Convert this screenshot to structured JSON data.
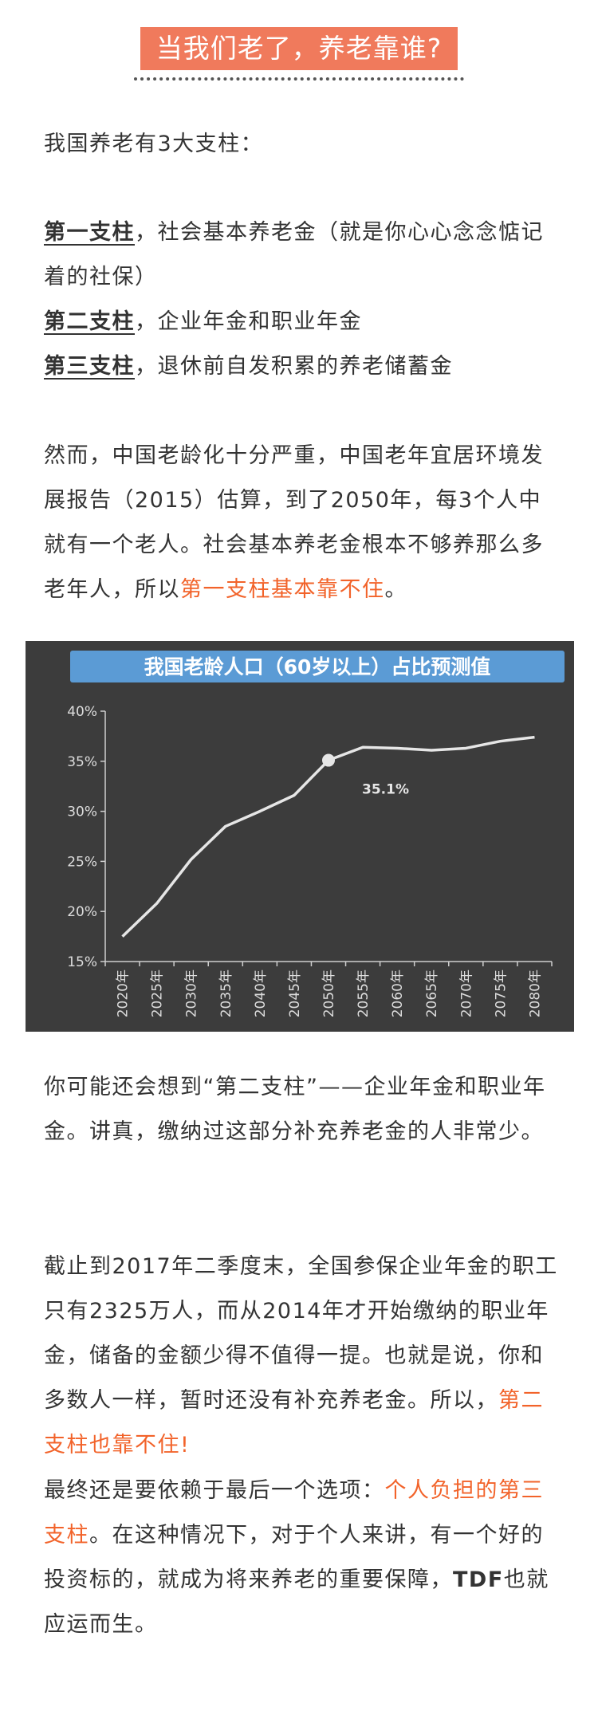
{
  "title": "当我们老了，养老靠谁?",
  "intro": "我国养老有3大支柱：",
  "pillars": [
    {
      "name": "第一支柱",
      "desc": "，社会基本养老金（就是你心心念念惦记着的社保）"
    },
    {
      "name": "第二支柱",
      "desc": "，企业年金和职业年金"
    },
    {
      "name": "第三支柱",
      "desc": "，退休前自发积累的养老储蓄金"
    }
  ],
  "para1": {
    "text": "然而，中国老龄化十分严重，中国老年宜居环境发展报告（2015）估算，到了2050年，每3个人中就有一个老人。社会基本养老金根本不够养那么多老年人，所以",
    "highlight": "第一支柱基本靠不住",
    "end": "。"
  },
  "chart_data": {
    "type": "line",
    "title": "我国老龄人口（60岁以上）占比预测值",
    "categories": [
      "2020年",
      "2025年",
      "2030年",
      "2035年",
      "2040年",
      "2045年",
      "2050年",
      "2055年",
      "2060年",
      "2065年",
      "2070年",
      "2075年",
      "2080年"
    ],
    "values": [
      17.5,
      20.8,
      25.2,
      28.5,
      30.0,
      31.6,
      35.1,
      36.4,
      36.3,
      36.1,
      36.3,
      37.0,
      37.4
    ],
    "yticks": [
      "15%",
      "20%",
      "25%",
      "30%",
      "35%",
      "40%"
    ],
    "ylim": [
      15,
      40
    ],
    "annotation": {
      "label": "35.1%",
      "category": "2050年",
      "value": 35.1
    },
    "colors": {
      "background": "#3c3c3c",
      "title_bar": "#5b9bd5",
      "line": "#e6e6e6",
      "text": "#ffffff"
    }
  },
  "para2": "你可能还会想到“第二支柱”——企业年金和职业年金。讲真，缴纳过这部分补充养老金的人非常少。",
  "para3": {
    "text": "截止到2017年二季度末，全国参保企业年金的职工只有2325万人，而从2014年才开始缴纳的职业年金，储备的金额少得不值得一提。也就是说，你和多数人一样，暂时还没有补充养老金。所以，",
    "highlight": "第二支柱也靠不住!"
  },
  "para4": {
    "text": "最终还是要依赖于最后一个选项：",
    "highlight": "个人负担的第三支柱",
    "text2": "。在这种情况下，对于个人来讲，有一个好的投资标的，就成为将来养老的重要保障，",
    "bold": "TDF",
    "end": "也就应运而生。"
  }
}
